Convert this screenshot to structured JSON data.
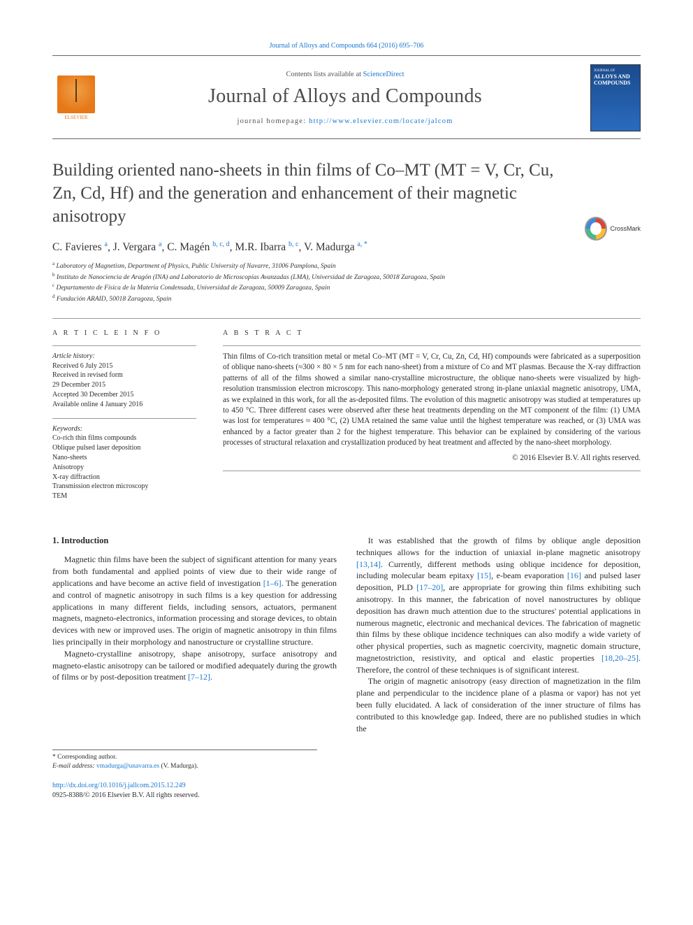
{
  "citation_line": "Journal of Alloys and Compounds 664 (2016) 695–706",
  "header": {
    "contents_prefix": "Contents lists available at ",
    "contents_link": "ScienceDirect",
    "journal_name": "Journal of Alloys and Compounds",
    "homepage_prefix": "journal homepage: ",
    "homepage_url": "http://www.elsevier.com/locate/jalcom",
    "elsevier_label": "ELSEVIER",
    "cover_small": "JOURNAL OF",
    "cover_big": "ALLOYS AND COMPOUNDS"
  },
  "crossmark_label": "CrossMark",
  "title": "Building oriented nano-sheets in thin films of Co–MT (MT = V, Cr, Cu, Zn, Cd, Hf) and the generation and enhancement of their magnetic anisotropy",
  "authors_html": "C. Favieres <sup>a</sup>, J. Vergara <sup>a</sup>, C. Magén <sup>b, c, d</sup>, M.R. Ibarra <sup>b, c</sup>, V. Madurga <sup>a, *</sup>",
  "affiliations": [
    {
      "sup": "a",
      "text": "Laboratory of Magnetism, Department of Physics, Public University of Navarre, 31006 Pamplona, Spain"
    },
    {
      "sup": "b",
      "text": "Instituto de Nanociencia de Aragón (INA) and Laboratorio de Microscopías Avanzadas (LMA), Universidad de Zaragoza, 50018 Zaragoza, Spain"
    },
    {
      "sup": "c",
      "text": "Departamento de Física de la Materia Condensada, Universidad de Zaragoza, 50009 Zaragoza, Spain"
    },
    {
      "sup": "d",
      "text": "Fundación ARAID, 50018 Zaragoza, Spain"
    }
  ],
  "article_info": {
    "heading": "A R T I C L E   I N F O",
    "history_label": "Article history:",
    "history": [
      "Received 6 July 2015",
      "Received in revised form",
      "29 December 2015",
      "Accepted 30 December 2015",
      "Available online 4 January 2016"
    ],
    "keywords_label": "Keywords:",
    "keywords": [
      "Co-rich thin films compounds",
      "Oblique pulsed laser deposition",
      "Nano-sheets",
      "Anisotropy",
      "X-ray diffraction",
      "Transmission electron microscopy",
      "TEM"
    ]
  },
  "abstract": {
    "heading": "A B S T R A C T",
    "text": "Thin films of Co-rich transition metal or metal Co–MT (MT = V, Cr, Cu, Zn, Cd, Hf) compounds were fabricated as a superposition of oblique nano-sheets (≈300 × 80 × 5 nm for each nano-sheet) from a mixture of Co and MT plasmas. Because the X-ray diffraction patterns of all of the films showed a similar nano-crystalline microstructure, the oblique nano-sheets were visualized by high-resolution transmission electron microscopy. This nano-morphology generated strong in-plane uniaxial magnetic anisotropy, UMA, as we explained in this work, for all the as-deposited films. The evolution of this magnetic anisotropy was studied at temperatures up to 450 °C. Three different cases were observed after these heat treatments depending on the MT component of the film: (1) UMA was lost for temperatures ≈ 400 °C, (2) UMA retained the same value until the highest temperature was reached, or (3) UMA was enhanced by a factor greater than 2 for the highest temperature. This behavior can be explained by considering of the various processes of structural relaxation and crystallization produced by heat treatment and affected by the nano-sheet morphology.",
    "copyright": "© 2016 Elsevier B.V. All rights reserved."
  },
  "section1": {
    "heading": "1. Introduction",
    "p1_a": "Magnetic thin films have been the subject of significant attention for many years from both fundamental and applied points of view due to their wide range of applications and have become an active field of investigation ",
    "p1_ref1": "[1–6]",
    "p1_b": ". The generation and control of magnetic anisotropy in such films is a key question for addressing applications in many different fields, including sensors, actuators, permanent magnets, magneto-electronics, information processing and storage devices, to obtain devices with new or improved uses. The origin of magnetic anisotropy in thin films lies principally in their morphology and nanostructure or crystalline structure.",
    "p2_a": "Magneto-crystalline anisotropy, shape anisotropy, surface anisotropy and magneto-elastic anisotropy can be tailored or modified adequately during the growth of films or by post-deposition treatment ",
    "p2_ref": "[7–12]",
    "p2_b": ".",
    "p3_a": "It was established that the growth of films by oblique angle deposition techniques allows for the induction of uniaxial in-plane magnetic anisotropy ",
    "p3_ref1": "[13,14]",
    "p3_b": ". Currently, different methods using oblique incidence for deposition, including molecular beam epitaxy ",
    "p3_ref2": "[15]",
    "p3_c": ", e-beam evaporation ",
    "p3_ref3": "[16]",
    "p3_d": " and pulsed laser deposition, PLD ",
    "p3_ref4": "[17–20]",
    "p3_e": ", are appropriate for growing thin films exhibiting such anisotropy. In this manner, the fabrication of novel nanostructures by oblique deposition has drawn much attention due to the structures' potential applications in numerous magnetic, electronic and mechanical devices. The fabrication of magnetic thin films by these oblique incidence techniques can also modify a wide variety of other physical properties, such as magnetic coercivity, magnetic domain structure, magnetostriction, resistivity, and optical and elastic properties ",
    "p3_ref5": "[18,20–25]",
    "p3_f": ". Therefore, the control of these techniques is of significant interest.",
    "p4": "The origin of magnetic anisotropy (easy direction of magnetization in the film plane and perpendicular to the incidence plane of a plasma or vapor) has not yet been fully elucidated. A lack of consideration of the inner structure of films has contributed to this knowledge gap. Indeed, there are no published studies in which the"
  },
  "footnote": {
    "corr_label": "* Corresponding author.",
    "email_label": "E-mail address: ",
    "email": "vmadurga@unavarra.es",
    "email_owner": " (V. Madurga)."
  },
  "footer": {
    "doi": "http://dx.doi.org/10.1016/j.jallcom.2015.12.249",
    "issn_line": "0925-8388/© 2016 Elsevier B.V. All rights reserved."
  },
  "colors": {
    "link": "#1976d2",
    "text": "#2b2b2b",
    "rule": "#999999",
    "elsevier_orange": "#e67817"
  }
}
